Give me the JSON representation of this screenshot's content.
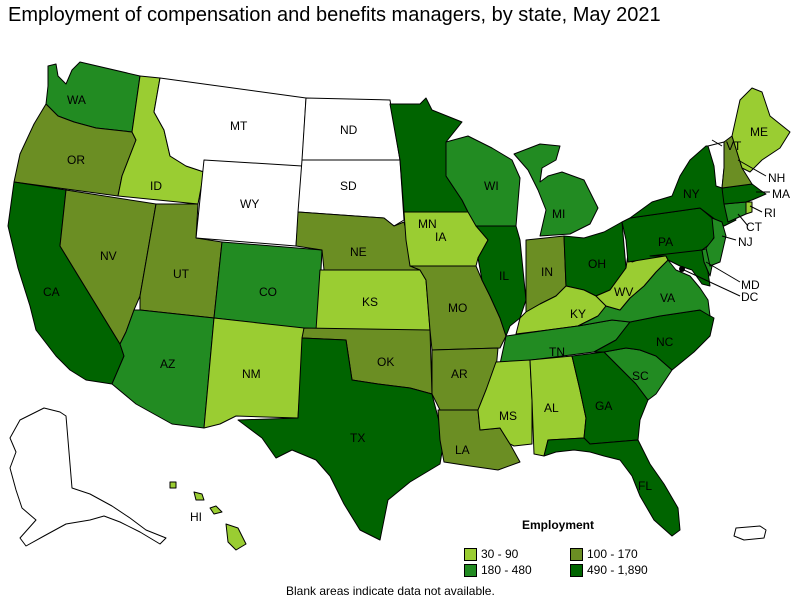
{
  "title": "Employment of compensation and benefits managers, by state, May 2021",
  "legend": {
    "title": "Employment",
    "items": [
      {
        "label": "30 - 90",
        "color": "#9acd32"
      },
      {
        "label": "100 - 170",
        "color": "#6b8e23"
      },
      {
        "label": "180 - 480",
        "color": "#228b22"
      },
      {
        "label": "490 - 1,890",
        "color": "#006400"
      }
    ]
  },
  "footnote": "Blank areas indicate data not available.",
  "colors": {
    "bin1": "#9acd32",
    "bin2": "#6b8e23",
    "bin3": "#228b22",
    "bin4": "#006400",
    "nodata": "#ffffff"
  },
  "states": [
    {
      "abbr": "WA",
      "bin": "bin3"
    },
    {
      "abbr": "OR",
      "bin": "bin2"
    },
    {
      "abbr": "CA",
      "bin": "bin4"
    },
    {
      "abbr": "ID",
      "bin": "bin1"
    },
    {
      "abbr": "NV",
      "bin": "bin2"
    },
    {
      "abbr": "MT",
      "bin": "nodata"
    },
    {
      "abbr": "WY",
      "bin": "nodata"
    },
    {
      "abbr": "UT",
      "bin": "bin2"
    },
    {
      "abbr": "AZ",
      "bin": "bin3"
    },
    {
      "abbr": "CO",
      "bin": "bin3"
    },
    {
      "abbr": "NM",
      "bin": "bin1"
    },
    {
      "abbr": "ND",
      "bin": "nodata"
    },
    {
      "abbr": "SD",
      "bin": "nodata"
    },
    {
      "abbr": "NE",
      "bin": "bin2"
    },
    {
      "abbr": "KS",
      "bin": "bin1"
    },
    {
      "abbr": "OK",
      "bin": "bin2"
    },
    {
      "abbr": "TX",
      "bin": "bin4"
    },
    {
      "abbr": "MN",
      "bin": "bin4"
    },
    {
      "abbr": "IA",
      "bin": "bin1"
    },
    {
      "abbr": "MO",
      "bin": "bin2"
    },
    {
      "abbr": "AR",
      "bin": "bin2"
    },
    {
      "abbr": "LA",
      "bin": "bin2"
    },
    {
      "abbr": "WI",
      "bin": "bin3"
    },
    {
      "abbr": "IL",
      "bin": "bin4"
    },
    {
      "abbr": "MI",
      "bin": "bin3"
    },
    {
      "abbr": "IN",
      "bin": "bin2"
    },
    {
      "abbr": "OH",
      "bin": "bin4"
    },
    {
      "abbr": "KY",
      "bin": "bin1"
    },
    {
      "abbr": "TN",
      "bin": "bin3"
    },
    {
      "abbr": "MS",
      "bin": "bin1"
    },
    {
      "abbr": "AL",
      "bin": "bin1"
    },
    {
      "abbr": "GA",
      "bin": "bin4"
    },
    {
      "abbr": "FL",
      "bin": "bin4"
    },
    {
      "abbr": "SC",
      "bin": "bin3"
    },
    {
      "abbr": "NC",
      "bin": "bin4"
    },
    {
      "abbr": "VA",
      "bin": "bin3"
    },
    {
      "abbr": "WV",
      "bin": "bin1"
    },
    {
      "abbr": "PA",
      "bin": "bin4"
    },
    {
      "abbr": "NY",
      "bin": "bin4"
    },
    {
      "abbr": "ME",
      "bin": "bin1"
    },
    {
      "abbr": "NH",
      "bin": "bin2"
    },
    {
      "abbr": "VT",
      "bin": "nodata"
    },
    {
      "abbr": "MA",
      "bin": "bin4"
    },
    {
      "abbr": "CT",
      "bin": "bin3"
    },
    {
      "abbr": "RI",
      "bin": "bin1"
    },
    {
      "abbr": "NJ",
      "bin": "bin3"
    },
    {
      "abbr": "DE",
      "bin": "bin3"
    },
    {
      "abbr": "MD",
      "bin": "bin4"
    },
    {
      "abbr": "DC",
      "bin": "bin4"
    },
    {
      "abbr": "AK",
      "bin": "nodata"
    },
    {
      "abbr": "HI",
      "bin": "bin1"
    },
    {
      "abbr": "PR",
      "bin": "nodata"
    }
  ]
}
